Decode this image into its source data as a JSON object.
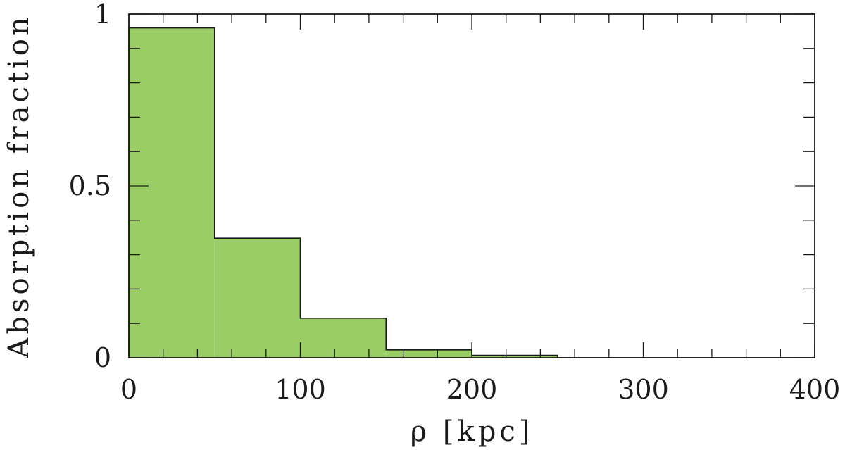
{
  "chart_data": {
    "type": "bar",
    "style": "step-histogram",
    "bins": [
      {
        "x0": 0,
        "x1": 50,
        "value": 0.96
      },
      {
        "x0": 50,
        "x1": 100,
        "value": 0.348
      },
      {
        "x0": 100,
        "x1": 150,
        "value": 0.115
      },
      {
        "x0": 150,
        "x1": 200,
        "value": 0.023
      },
      {
        "x0": 200,
        "x1": 250,
        "value": 0.007
      },
      {
        "x0": 250,
        "x1": 300,
        "value": 0
      },
      {
        "x0": 300,
        "x1": 350,
        "value": 0
      },
      {
        "x0": 350,
        "x1": 400,
        "value": 0
      }
    ],
    "xlabel": "ρ  [kpc]",
    "ylabel": "Absorption fraction",
    "xlim": [
      0,
      400
    ],
    "ylim": [
      0,
      1
    ],
    "xticks": [
      0,
      100,
      200,
      300,
      400
    ],
    "xtick_labels": [
      "0",
      "100",
      "200",
      "300",
      "400"
    ],
    "yticks": [
      0,
      0.5,
      1
    ],
    "ytick_labels": [
      "0",
      "0.5",
      "1"
    ],
    "x_minor_step": 20,
    "y_minor_step": 0.1,
    "grid": false,
    "colors": {
      "fill": "#9acd66",
      "stroke": "#1a1a1a",
      "frame": "#1a1a1a"
    }
  }
}
